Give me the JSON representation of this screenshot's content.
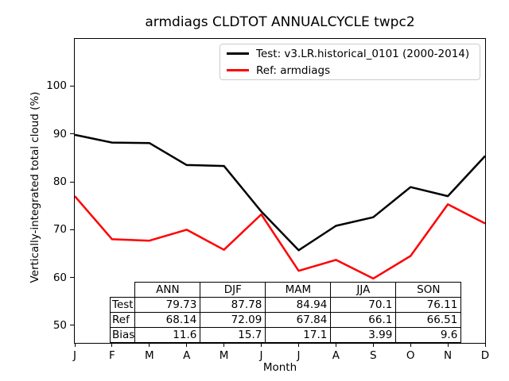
{
  "chart_data": {
    "type": "line",
    "title": "armdiags CLDTOT ANNUALCYCLE twpc2",
    "xlabel": "Month",
    "ylabel": "Vertically-integrated total cloud (%)",
    "categories": [
      "J",
      "F",
      "M",
      "A",
      "M",
      "J",
      "J",
      "A",
      "S",
      "O",
      "N",
      "D"
    ],
    "ylim": [
      46.35,
      109.85
    ],
    "y_ticks": [
      100,
      90,
      80,
      70,
      60,
      50
    ],
    "grid": false,
    "legend_position": "upper center",
    "series": [
      {
        "name": "Test: v3.LR.historical_0101 (2000-2014)",
        "color": "#000000",
        "values": [
          89.8,
          88.2,
          88.1,
          83.5,
          83.3,
          73.8,
          65.7,
          70.8,
          72.6,
          78.9,
          77.0,
          85.4
        ]
      },
      {
        "name": "Ref: armdiags",
        "color": "#ff0000",
        "values": [
          77.0,
          68.0,
          67.7,
          70.0,
          65.8,
          73.2,
          61.4,
          63.7,
          59.8,
          64.5,
          75.3,
          71.3
        ]
      }
    ]
  },
  "table": {
    "col_headers": [
      "ANN",
      "DJF",
      "MAM",
      "JJA",
      "SON"
    ],
    "rows": [
      {
        "label": "Test",
        "values": [
          "79.73",
          "87.78",
          "84.94",
          "70.1",
          "76.11"
        ]
      },
      {
        "label": "Ref",
        "values": [
          "68.14",
          "72.09",
          "67.84",
          "66.1",
          "66.51"
        ]
      },
      {
        "label": "Bias",
        "values": [
          "11.6",
          "15.7",
          "17.1",
          "3.99",
          "9.6"
        ]
      }
    ]
  }
}
